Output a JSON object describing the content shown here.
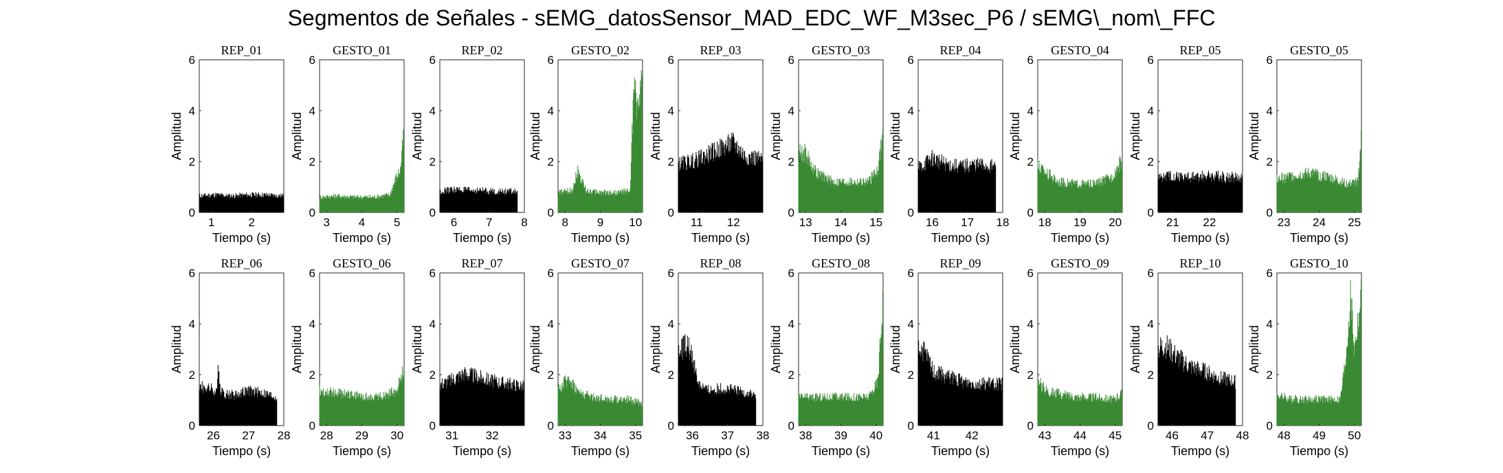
{
  "title": "Segmentos de Señales - sEMG_datosSensor_MAD_EDC_WF_M3sec_P6 / sEMG\\_nom\\_FFC",
  "colors": {
    "rep": "#000000",
    "gesto": "#3a8a34"
  },
  "chart_data": [
    {
      "type": "area",
      "title": "REP_01",
      "xlabel": "Tiempo (s)",
      "ylabel": "Amplitud",
      "xlim": [
        0.7,
        2.8
      ],
      "ylim": [
        0,
        6
      ],
      "xticks": [
        1,
        2
      ],
      "yticks": [
        0,
        2,
        4,
        6
      ],
      "color": "rep",
      "x_range": [
        0.7,
        2.8
      ],
      "x": [
        0.7,
        1.1,
        1.5,
        1.9,
        2.3,
        2.8
      ],
      "y": [
        0.75,
        0.8,
        0.75,
        0.8,
        0.8,
        0.75
      ]
    },
    {
      "type": "area",
      "title": "GESTO_01",
      "xlabel": "Tiempo (s)",
      "ylabel": "Amplitud",
      "xlim": [
        2.8,
        5.2
      ],
      "ylim": [
        0,
        6
      ],
      "xticks": [
        3,
        4,
        5
      ],
      "yticks": [
        0,
        2,
        4,
        6
      ],
      "color": "gesto",
      "x_range": [
        2.8,
        5.2
      ],
      "x": [
        2.8,
        3.3,
        3.8,
        4.3,
        4.8,
        4.95,
        5.1,
        5.2
      ],
      "y": [
        0.7,
        0.75,
        0.7,
        0.7,
        0.8,
        1.5,
        2.0,
        3.8
      ]
    },
    {
      "type": "area",
      "title": "REP_02",
      "xlabel": "Tiempo (s)",
      "ylabel": "Amplitud",
      "xlim": [
        5.6,
        8
      ],
      "ylim": [
        0,
        6
      ],
      "xticks": [
        6,
        7,
        8
      ],
      "yticks": [
        0,
        2,
        4,
        6
      ],
      "color": "rep",
      "x_range": [
        5.6,
        7.8
      ],
      "x": [
        5.6,
        6.0,
        6.4,
        6.8,
        7.2,
        7.8
      ],
      "y": [
        0.95,
        1.05,
        1.0,
        1.0,
        0.95,
        0.95
      ]
    },
    {
      "type": "area",
      "title": "GESTO_02",
      "xlabel": "Tiempo (s)",
      "ylabel": "Amplitud",
      "xlim": [
        7.8,
        10.2
      ],
      "ylim": [
        0,
        6
      ],
      "xticks": [
        8,
        9,
        10
      ],
      "yticks": [
        0,
        2,
        4,
        6
      ],
      "color": "gesto",
      "x_range": [
        7.8,
        10.2
      ],
      "x": [
        7.8,
        8.2,
        8.35,
        8.6,
        9.0,
        9.5,
        9.85,
        9.95,
        10.05,
        10.2
      ],
      "y": [
        0.9,
        1.0,
        1.9,
        1.0,
        0.9,
        0.9,
        1.0,
        5.9,
        4.8,
        6.0
      ]
    },
    {
      "type": "area",
      "title": "REP_03",
      "xlabel": "Tiempo (s)",
      "ylabel": "Amplitud",
      "xlim": [
        10.5,
        12.8
      ],
      "ylim": [
        0,
        6
      ],
      "xticks": [
        11,
        12
      ],
      "yticks": [
        0,
        2,
        4,
        6
      ],
      "color": "rep",
      "x_range": [
        10.5,
        12.8
      ],
      "x": [
        10.5,
        11.0,
        11.5,
        12.0,
        12.3,
        12.8
      ],
      "y": [
        2.2,
        2.4,
        2.8,
        3.2,
        2.6,
        2.4
      ]
    },
    {
      "type": "area",
      "title": "GESTO_03",
      "xlabel": "Tiempo (s)",
      "ylabel": "Amplitud",
      "xlim": [
        12.8,
        15.2
      ],
      "ylim": [
        0,
        6
      ],
      "xticks": [
        13,
        14,
        15
      ],
      "yticks": [
        0,
        2,
        4,
        6
      ],
      "color": "gesto",
      "x_range": [
        12.8,
        15.2
      ],
      "x": [
        12.8,
        13.0,
        13.3,
        13.8,
        14.3,
        14.8,
        15.05,
        15.2
      ],
      "y": [
        2.8,
        2.7,
        1.8,
        1.4,
        1.4,
        1.4,
        2.0,
        3.7
      ]
    },
    {
      "type": "area",
      "title": "REP_04",
      "xlabel": "Tiempo (s)",
      "ylabel": "Amplitud",
      "xlim": [
        15.6,
        18
      ],
      "ylim": [
        0,
        6
      ],
      "xticks": [
        16,
        17,
        18
      ],
      "yticks": [
        0,
        2,
        4,
        6
      ],
      "color": "rep",
      "x_range": [
        15.6,
        17.8
      ],
      "x": [
        15.6,
        16.0,
        16.4,
        16.8,
        17.2,
        17.8
      ],
      "y": [
        2.0,
        2.5,
        2.2,
        2.1,
        2.2,
        2.1
      ]
    },
    {
      "type": "area",
      "title": "GESTO_04",
      "xlabel": "Tiempo (s)",
      "ylabel": "Amplitud",
      "xlim": [
        17.8,
        20.2
      ],
      "ylim": [
        0,
        6
      ],
      "xticks": [
        18,
        19,
        20
      ],
      "yticks": [
        0,
        2,
        4,
        6
      ],
      "color": "gesto",
      "x_range": [
        17.8,
        20.2
      ],
      "x": [
        17.8,
        18.0,
        18.4,
        18.9,
        19.4,
        19.9,
        20.2
      ],
      "y": [
        2.1,
        1.9,
        1.4,
        1.3,
        1.3,
        1.6,
        2.4
      ]
    },
    {
      "type": "area",
      "title": "REP_05",
      "xlabel": "Tiempo (s)",
      "ylabel": "Amplitud",
      "xlim": [
        20.6,
        22.9
      ],
      "ylim": [
        0,
        6
      ],
      "xticks": [
        21,
        22
      ],
      "yticks": [
        0,
        2,
        4,
        6
      ],
      "color": "rep",
      "x_range": [
        20.6,
        22.9
      ],
      "x": [
        20.6,
        21.0,
        21.5,
        22.0,
        22.5,
        22.9
      ],
      "y": [
        1.6,
        1.7,
        1.6,
        1.7,
        1.6,
        1.6
      ]
    },
    {
      "type": "area",
      "title": "GESTO_05",
      "xlabel": "Tiempo (s)",
      "ylabel": "Amplitud",
      "xlim": [
        22.8,
        25.2
      ],
      "ylim": [
        0,
        6
      ],
      "xticks": [
        23,
        24,
        25
      ],
      "yticks": [
        0,
        2,
        4,
        6
      ],
      "color": "gesto",
      "x_range": [
        22.8,
        25.2
      ],
      "x": [
        22.8,
        23.3,
        23.8,
        24.3,
        24.8,
        25.1,
        25.2
      ],
      "y": [
        1.5,
        1.7,
        1.8,
        1.6,
        1.3,
        1.4,
        3.5
      ]
    },
    {
      "type": "area",
      "title": "REP_06",
      "xlabel": "Tiempo (s)",
      "ylabel": "Amplitud",
      "xlim": [
        25.6,
        28
      ],
      "ylim": [
        0,
        6
      ],
      "xticks": [
        26,
        27,
        28
      ],
      "yticks": [
        0,
        2,
        4,
        6
      ],
      "color": "rep",
      "x_range": [
        25.6,
        27.8
      ],
      "x": [
        25.6,
        25.9,
        26.1,
        26.15,
        26.2,
        26.6,
        27.0,
        27.4,
        27.8
      ],
      "y": [
        1.8,
        1.7,
        1.5,
        2.9,
        1.5,
        1.4,
        1.6,
        1.5,
        1.3
      ]
    },
    {
      "type": "area",
      "title": "GESTO_06",
      "xlabel": "Tiempo (s)",
      "ylabel": "Amplitud",
      "xlim": [
        27.8,
        30.2
      ],
      "ylim": [
        0,
        6
      ],
      "xticks": [
        28,
        29,
        30
      ],
      "yticks": [
        0,
        2,
        4,
        6
      ],
      "color": "gesto",
      "x_range": [
        27.8,
        30.2
      ],
      "x": [
        27.8,
        28.2,
        28.7,
        29.2,
        29.7,
        30.0,
        30.2
      ],
      "y": [
        1.6,
        1.5,
        1.4,
        1.3,
        1.4,
        1.6,
        2.6
      ]
    },
    {
      "type": "area",
      "title": "REP_07",
      "xlabel": "Tiempo (s)",
      "ylabel": "Amplitud",
      "xlim": [
        30.7,
        32.8
      ],
      "ylim": [
        0,
        6
      ],
      "xticks": [
        31,
        32
      ],
      "yticks": [
        0,
        2,
        4,
        6
      ],
      "color": "rep",
      "x_range": [
        30.7,
        32.8
      ],
      "x": [
        30.7,
        31.0,
        31.3,
        31.7,
        32.1,
        32.5,
        32.8
      ],
      "y": [
        1.9,
        2.1,
        2.4,
        2.2,
        2.0,
        1.9,
        1.8
      ]
    },
    {
      "type": "area",
      "title": "GESTO_07",
      "xlabel": "Tiempo (s)",
      "ylabel": "Amplitud",
      "xlim": [
        32.8,
        35.2
      ],
      "ylim": [
        0,
        6
      ],
      "xticks": [
        33,
        34,
        35
      ],
      "yticks": [
        0,
        2,
        4,
        6
      ],
      "color": "gesto",
      "x_range": [
        32.8,
        35.2
      ],
      "x": [
        32.8,
        33.1,
        33.4,
        33.8,
        34.3,
        34.8,
        35.2
      ],
      "y": [
        1.6,
        2.2,
        1.5,
        1.3,
        1.2,
        1.2,
        1.0
      ]
    },
    {
      "type": "area",
      "title": "REP_08",
      "xlabel": "Tiempo (s)",
      "ylabel": "Amplitud",
      "xlim": [
        35.6,
        38
      ],
      "ylim": [
        0,
        6
      ],
      "xticks": [
        36,
        37,
        38
      ],
      "yticks": [
        0,
        2,
        4,
        6
      ],
      "color": "rep",
      "x_range": [
        35.6,
        37.8
      ],
      "x": [
        35.6,
        35.8,
        36.0,
        36.15,
        36.4,
        36.8,
        37.2,
        37.8
      ],
      "y": [
        3.2,
        3.8,
        3.2,
        2.0,
        1.6,
        1.7,
        1.6,
        1.4
      ]
    },
    {
      "type": "area",
      "title": "GESTO_08",
      "xlabel": "Tiempo (s)",
      "ylabel": "Amplitud",
      "xlim": [
        37.8,
        40.2
      ],
      "ylim": [
        0,
        6
      ],
      "xticks": [
        38,
        39,
        40
      ],
      "yticks": [
        0,
        2,
        4,
        6
      ],
      "color": "gesto",
      "x_range": [
        37.8,
        40.2
      ],
      "x": [
        37.8,
        38.3,
        38.8,
        39.3,
        39.8,
        40.05,
        40.2
      ],
      "y": [
        1.3,
        1.3,
        1.3,
        1.3,
        1.3,
        2.0,
        6.0
      ]
    },
    {
      "type": "area",
      "title": "REP_09",
      "xlabel": "Tiempo (s)",
      "ylabel": "Amplitud",
      "xlim": [
        40.6,
        42.8
      ],
      "ylim": [
        0,
        6
      ],
      "xticks": [
        41,
        42
      ],
      "yticks": [
        0,
        2,
        4,
        6
      ],
      "color": "rep",
      "x_range": [
        40.6,
        42.8
      ],
      "x": [
        40.6,
        40.8,
        41.0,
        41.4,
        41.8,
        42.2,
        42.8
      ],
      "y": [
        3.6,
        3.2,
        2.5,
        2.2,
        2.0,
        1.9,
        1.9
      ]
    },
    {
      "type": "area",
      "title": "GESTO_09",
      "xlabel": "Tiempo (s)",
      "ylabel": "Amplitud",
      "xlim": [
        42.8,
        45.2
      ],
      "ylim": [
        0,
        6
      ],
      "xticks": [
        43,
        44,
        45
      ],
      "yticks": [
        0,
        2,
        4,
        6
      ],
      "color": "gesto",
      "x_range": [
        42.8,
        45.2
      ],
      "x": [
        42.8,
        43.1,
        43.5,
        44.0,
        44.5,
        45.0,
        45.2
      ],
      "y": [
        2.0,
        1.6,
        1.4,
        1.3,
        1.3,
        1.2,
        1.5
      ]
    },
    {
      "type": "area",
      "title": "REP_10",
      "xlabel": "Tiempo (s)",
      "ylabel": "Amplitud",
      "xlim": [
        45.6,
        48
      ],
      "ylim": [
        0,
        6
      ],
      "xticks": [
        46,
        47,
        48
      ],
      "yticks": [
        0,
        2,
        4,
        6
      ],
      "color": "rep",
      "x_range": [
        45.6,
        47.8
      ],
      "x": [
        45.6,
        45.8,
        46.1,
        46.5,
        46.9,
        47.3,
        47.8
      ],
      "y": [
        3.5,
        3.7,
        3.2,
        2.7,
        2.5,
        2.2,
        2.0
      ]
    },
    {
      "type": "area",
      "title": "GESTO_10",
      "xlabel": "Tiempo (s)",
      "ylabel": "Amplitud",
      "xlim": [
        47.8,
        50.2
      ],
      "ylim": [
        0,
        6
      ],
      "xticks": [
        48,
        49,
        50
      ],
      "yticks": [
        0,
        2,
        4,
        6
      ],
      "color": "gesto",
      "x_range": [
        47.8,
        50.2
      ],
      "x": [
        47.8,
        48.2,
        48.7,
        49.2,
        49.6,
        49.75,
        49.9,
        50.0,
        50.2
      ],
      "y": [
        1.4,
        1.2,
        1.2,
        1.2,
        1.2,
        3.0,
        6.0,
        3.5,
        6.0
      ]
    }
  ]
}
